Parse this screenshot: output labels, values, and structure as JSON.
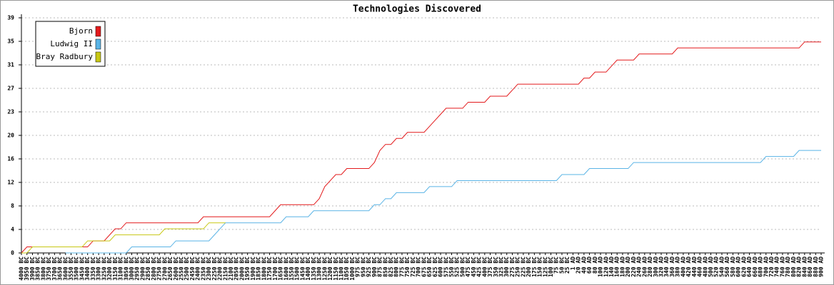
{
  "chart_data": {
    "type": "line",
    "title": "Technologies Discovered",
    "categories": [
      "4000 BC",
      "3950 BC",
      "3900 BC",
      "3850 BC",
      "3800 BC",
      "3750 BC",
      "3700 BC",
      "3650 BC",
      "3600 BC",
      "3550 BC",
      "3500 BC",
      "3450 BC",
      "3400 BC",
      "3350 BC",
      "3300 BC",
      "3250 BC",
      "3200 BC",
      "3150 BC",
      "3100 BC",
      "3050 BC",
      "3000 BC",
      "2950 BC",
      "2900 BC",
      "2850 BC",
      "2800 BC",
      "2750 BC",
      "2700 BC",
      "2650 BC",
      "2600 BC",
      "2550 BC",
      "2500 BC",
      "2450 BC",
      "2400 BC",
      "2350 BC",
      "2300 BC",
      "2250 BC",
      "2200 BC",
      "2150 BC",
      "2100 BC",
      "2050 BC",
      "2000 BC",
      "1950 BC",
      "1900 BC",
      "1850 BC",
      "1800 BC",
      "1750 BC",
      "1700 BC",
      "1650 BC",
      "1600 BC",
      "1550 BC",
      "1500 BC",
      "1450 BC",
      "1400 BC",
      "1350 BC",
      "1300 BC",
      "1250 BC",
      "1200 BC",
      "1150 BC",
      "1100 BC",
      "1050 BC",
      "1000 BC",
      "975 BC",
      "950 BC",
      "925 BC",
      "900 BC",
      "875 BC",
      "850 BC",
      "825 BC",
      "800 BC",
      "775 BC",
      "750 BC",
      "725 BC",
      "700 BC",
      "675 BC",
      "650 BC",
      "625 BC",
      "600 BC",
      "575 BC",
      "550 BC",
      "525 BC",
      "500 BC",
      "475 BC",
      "450 BC",
      "425 BC",
      "400 BC",
      "375 BC",
      "350 BC",
      "325 BC",
      "300 BC",
      "275 BC",
      "250 BC",
      "225 BC",
      "200 BC",
      "175 BC",
      "150 BC",
      "125 BC",
      "100 BC",
      "75 BC",
      "50 BC",
      "25 BC",
      "1 AD",
      "20 AD",
      "40 AD",
      "60 AD",
      "80 AD",
      "100 AD",
      "120 AD",
      "140 AD",
      "160 AD",
      "180 AD",
      "200 AD",
      "220 AD",
      "240 AD",
      "260 AD",
      "280 AD",
      "300 AD",
      "320 AD",
      "340 AD",
      "360 AD",
      "380 AD",
      "400 AD",
      "420 AD",
      "440 AD",
      "460 AD",
      "480 AD",
      "500 AD",
      "520 AD",
      "540 AD",
      "560 AD",
      "580 AD",
      "600 AD",
      "620 AD",
      "640 AD",
      "660 AD",
      "680 AD",
      "700 AD",
      "720 AD",
      "740 AD",
      "760 AD",
      "780 AD",
      "800 AD",
      "820 AD",
      "840 AD",
      "860 AD",
      "880 AD",
      "900 AD"
    ],
    "series": [
      {
        "name": "Bjorn",
        "color": "#e31a1c",
        "values": [
          0,
          1,
          1,
          1,
          1,
          1,
          1,
          1,
          1,
          1,
          1,
          1,
          1,
          2,
          2,
          2,
          3,
          4,
          4,
          5,
          5,
          5,
          5,
          5,
          5,
          5,
          5,
          5,
          5,
          5,
          5,
          5,
          5,
          6,
          6,
          6,
          6,
          6,
          6,
          6,
          6,
          6,
          6,
          6,
          6,
          6,
          7,
          8,
          8,
          8,
          8,
          8,
          8,
          8,
          9,
          11,
          12,
          13,
          13,
          14,
          14,
          14,
          14,
          14,
          15,
          17,
          18,
          18,
          19,
          19,
          20,
          20,
          20,
          20,
          21,
          22,
          23,
          24,
          24,
          24,
          24,
          25,
          25,
          25,
          25,
          26,
          26,
          26,
          26,
          27,
          28,
          28,
          28,
          28,
          28,
          28,
          28,
          28,
          28,
          28,
          28,
          28,
          29,
          29,
          30,
          30,
          30,
          31,
          32,
          32,
          32,
          32,
          33,
          33,
          33,
          33,
          33,
          33,
          33,
          34,
          34,
          34,
          34,
          34,
          34,
          34,
          34,
          34,
          34,
          34,
          34,
          34,
          34,
          34,
          34,
          34,
          34,
          34,
          34,
          34,
          34,
          34,
          35,
          35,
          35,
          35
        ]
      },
      {
        "name": "Ludwig II",
        "color": "#5ab4e6",
        "values": [
          null,
          null,
          null,
          null,
          null,
          null,
          null,
          null,
          0,
          0,
          0,
          0,
          0,
          0,
          0,
          0,
          0,
          0,
          0,
          0,
          1,
          1,
          1,
          1,
          1,
          1,
          1,
          1,
          2,
          2,
          2,
          2,
          2,
          2,
          2,
          3,
          4,
          5,
          5,
          5,
          5,
          5,
          5,
          5,
          5,
          5,
          5,
          5,
          6,
          6,
          6,
          6,
          6,
          7,
          7,
          7,
          7,
          7,
          7,
          7,
          7,
          7,
          7,
          7,
          8,
          8,
          9,
          9,
          10,
          10,
          10,
          10,
          10,
          10,
          11,
          11,
          11,
          11,
          11,
          12,
          12,
          12,
          12,
          12,
          12,
          12,
          12,
          12,
          12,
          12,
          12,
          12,
          12,
          12,
          12,
          12,
          12,
          12,
          13,
          13,
          13,
          13,
          13,
          14,
          14,
          14,
          14,
          14,
          14,
          14,
          14,
          15,
          15,
          15,
          15,
          15,
          15,
          15,
          15,
          15,
          15,
          15,
          15,
          15,
          15,
          15,
          15,
          15,
          15,
          15,
          15,
          15,
          15,
          15,
          15,
          16,
          16,
          16,
          16,
          16,
          16,
          17,
          17,
          17,
          17,
          17
        ]
      },
      {
        "name": "Bray Radbury",
        "color": "#c8c814",
        "values": [
          0,
          0,
          1,
          1,
          1,
          1,
          1,
          1,
          1,
          1,
          1,
          1,
          2,
          2,
          2,
          2,
          2,
          3,
          3,
          3,
          3,
          3,
          3,
          3,
          3,
          3,
          4,
          4,
          4,
          4,
          4,
          4,
          4,
          4,
          5,
          5,
          5,
          5,
          null,
          null,
          null,
          null,
          null,
          null,
          null,
          null,
          null,
          null,
          null,
          null,
          null,
          null,
          null,
          null,
          null,
          null,
          null,
          null,
          null,
          null,
          null,
          null,
          null,
          null,
          null,
          null,
          null,
          null,
          null,
          null,
          null,
          null,
          null,
          null,
          null,
          null,
          null,
          null,
          null,
          null,
          null,
          null,
          null,
          null,
          null,
          null,
          null,
          null,
          null,
          null,
          null,
          null,
          null,
          null,
          null,
          null,
          null,
          null,
          null,
          null,
          null,
          null,
          null,
          null,
          null,
          null,
          null,
          null,
          null,
          null,
          null,
          null,
          null,
          null,
          null,
          null,
          null,
          null,
          null,
          null,
          null,
          null,
          null,
          null,
          null,
          null,
          null,
          null,
          null,
          null,
          null,
          null,
          null,
          null,
          null,
          null,
          null,
          null,
          null,
          null,
          null,
          null,
          null,
          null,
          null,
          null
        ]
      }
    ],
    "ylim": [
      0,
      39
    ],
    "yticks": [
      0,
      {
        "value": 3.9,
        "label": "4"
      },
      {
        "value": 7.8,
        "label": "8"
      },
      {
        "value": 11.7,
        "label": "12"
      },
      {
        "value": 15.6,
        "label": "16"
      },
      {
        "value": 19.5,
        "label": "20"
      },
      {
        "value": 23.4,
        "label": "23"
      },
      {
        "value": 27.3,
        "label": "27"
      },
      {
        "value": 31.2,
        "label": "31"
      },
      {
        "value": 35.1,
        "label": "35"
      },
      39
    ],
    "grid": true,
    "legend": "top-left"
  }
}
